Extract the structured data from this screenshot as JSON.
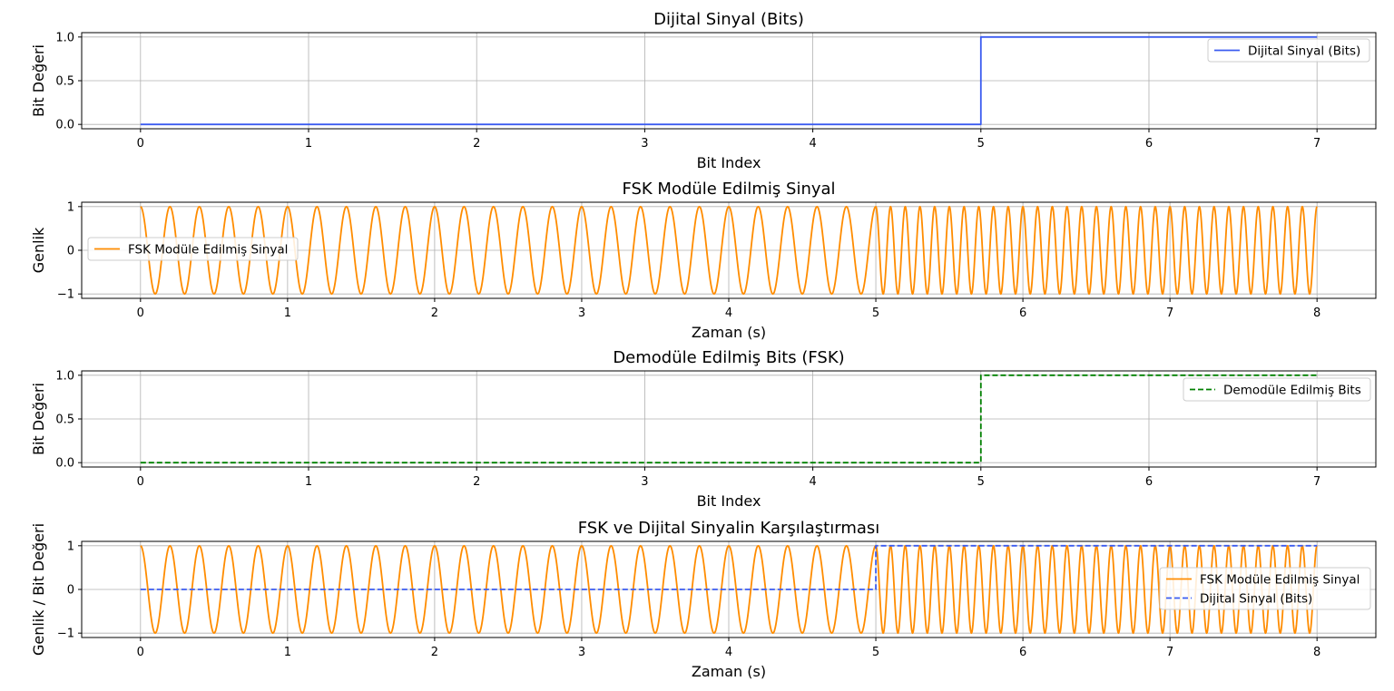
{
  "chart_data": [
    {
      "type": "line",
      "title": "Dijital Sinyal (Bits)",
      "xlabel": "Bit Index",
      "ylabel": "Bit Değeri",
      "xlim": [
        -0.35,
        7.35
      ],
      "ylim": [
        -0.05,
        1.05
      ],
      "xticks": [
        "0",
        "1",
        "2",
        "3",
        "4",
        "5",
        "6",
        "7"
      ],
      "yticks": [
        "0.0",
        "0.5",
        "1.0"
      ],
      "grid": true,
      "legend_position": "upper-right",
      "series": [
        {
          "name": "Dijital Sinyal (Bits)",
          "style": "step",
          "color": "#3b5cf0",
          "x": [
            0,
            1,
            2,
            3,
            4,
            5,
            6,
            7
          ],
          "values": [
            0,
            0,
            0,
            0,
            0,
            1,
            1,
            1
          ]
        }
      ]
    },
    {
      "type": "line",
      "title": "FSK Modüle Edilmiş Sinyal",
      "xlabel": "Zaman (s)",
      "ylabel": "Genlik",
      "xlim": [
        -0.4,
        8.4
      ],
      "ylim": [
        -1.1,
        1.1
      ],
      "xticks": [
        "0",
        "1",
        "2",
        "3",
        "4",
        "5",
        "6",
        "7",
        "8"
      ],
      "yticks": [
        "−1",
        "0",
        "1"
      ],
      "grid": true,
      "legend_position": "center-left",
      "series": [
        {
          "name": "FSK Modüle Edilmiş Sinyal",
          "style": "cosine",
          "color": "#ff8c00",
          "segments": [
            {
              "t_start": 0,
              "t_end": 5,
              "frequency_hz": 5
            },
            {
              "t_start": 5,
              "t_end": 8,
              "frequency_hz": 10
            }
          ]
        }
      ]
    },
    {
      "type": "line",
      "title": "Demodüle Edilmiş Bits (FSK)",
      "xlabel": "Bit Index",
      "ylabel": "Bit Değeri",
      "xlim": [
        -0.35,
        7.35
      ],
      "ylim": [
        -0.05,
        1.05
      ],
      "xticks": [
        "0",
        "1",
        "2",
        "3",
        "4",
        "5",
        "6",
        "7"
      ],
      "yticks": [
        "0.0",
        "0.5",
        "1.0"
      ],
      "grid": true,
      "legend_position": "upper-right",
      "series": [
        {
          "name": "Demodüle Edilmiş Bits",
          "style": "step-dashed",
          "color": "#008000",
          "x": [
            0,
            1,
            2,
            3,
            4,
            5,
            6,
            7
          ],
          "values": [
            0,
            0,
            0,
            0,
            0,
            1,
            1,
            1
          ]
        }
      ]
    },
    {
      "type": "line",
      "title": "FSK ve Dijital Sinyalin Karşılaştırması",
      "xlabel": "Zaman (s)",
      "ylabel": "Genlik / Bit Değeri",
      "xlim": [
        -0.4,
        8.4
      ],
      "ylim": [
        -1.1,
        1.1
      ],
      "xticks": [
        "0",
        "1",
        "2",
        "3",
        "4",
        "5",
        "6",
        "7",
        "8"
      ],
      "yticks": [
        "−1",
        "0",
        "1"
      ],
      "grid": true,
      "legend_position": "center-right",
      "series": [
        {
          "name": "FSK Modüle Edilmiş Sinyal",
          "style": "cosine",
          "color": "#ff8c00",
          "segments": [
            {
              "t_start": 0,
              "t_end": 5,
              "frequency_hz": 5
            },
            {
              "t_start": 5,
              "t_end": 8,
              "frequency_hz": 10
            }
          ]
        },
        {
          "name": "Dijital Sinyal (Bits)",
          "style": "time-step-dashed",
          "color": "#3b5cf0",
          "x": [
            0,
            5,
            8
          ],
          "values": [
            0,
            1,
            1
          ]
        }
      ]
    }
  ]
}
